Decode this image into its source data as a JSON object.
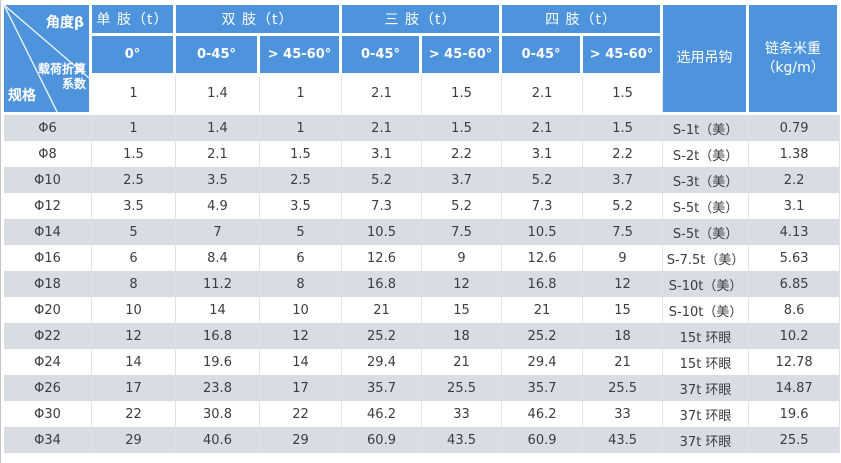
{
  "colors": {
    "header_blue": "#4e94dc",
    "row_alt_gray": "#d8dce3",
    "divider_gray": "#e0e2e6",
    "text_dark": "#3c3c44",
    "header_text": "#ffffff"
  },
  "table": {
    "corner": {
      "top_label": "角度β",
      "mid_line1": "载荷折算",
      "mid_line2": "系数",
      "bottom_label": "规格"
    },
    "group_headers": [
      {
        "label": "单 肢（t）",
        "span": 1
      },
      {
        "label": "双 肢（t）",
        "span": 2
      },
      {
        "label": "三 肢（t）",
        "span": 2
      },
      {
        "label": "四 肢（t）",
        "span": 2
      }
    ],
    "angle_headers": [
      "0°",
      "0-45°",
      "> 45-60°",
      "0-45°",
      "> 45-60°",
      "0-45°",
      "> 45-60°"
    ],
    "side_headers": {
      "hook": "选用吊钩",
      "weight_line1": "链条米重",
      "weight_line2": "（kg/m）"
    },
    "coefficient_row": [
      "1",
      "1.4",
      "1",
      "2.1",
      "1.5",
      "2.1",
      "1.5"
    ],
    "rows": [
      {
        "spec": "Φ6",
        "values": [
          "1",
          "1.4",
          "1",
          "2.1",
          "1.5",
          "2.1",
          "1.5"
        ],
        "hook": "S-1t（美）",
        "weight": "0.79"
      },
      {
        "spec": "Φ8",
        "values": [
          "1.5",
          "2.1",
          "1.5",
          "3.1",
          "2.2",
          "3.1",
          "2.2"
        ],
        "hook": "S-2t（美）",
        "weight": "1.38"
      },
      {
        "spec": "Φ10",
        "values": [
          "2.5",
          "3.5",
          "2.5",
          "5.2",
          "3.7",
          "5.2",
          "3.7"
        ],
        "hook": "S-3t（美）",
        "weight": "2.2"
      },
      {
        "spec": "Φ12",
        "values": [
          "3.5",
          "4.9",
          "3.5",
          "7.3",
          "5.2",
          "7.3",
          "5.2"
        ],
        "hook": "S-5t（美）",
        "weight": "3.1"
      },
      {
        "spec": "Φ14",
        "values": [
          "5",
          "7",
          "5",
          "10.5",
          "7.5",
          "10.5",
          "7.5"
        ],
        "hook": "S-5t（美）",
        "weight": "4.13"
      },
      {
        "spec": "Φ16",
        "values": [
          "6",
          "8.4",
          "6",
          "12.6",
          "9",
          "12.6",
          "9"
        ],
        "hook": "S-7.5t（美）",
        "weight": "5.63"
      },
      {
        "spec": "Φ18",
        "values": [
          "8",
          "11.2",
          "8",
          "16.8",
          "12",
          "16.8",
          "12"
        ],
        "hook": "S-10t（美）",
        "weight": "6.85"
      },
      {
        "spec": "Φ20",
        "values": [
          "10",
          "14",
          "10",
          "21",
          "15",
          "21",
          "15"
        ],
        "hook": "S-10t（美）",
        "weight": "8.6"
      },
      {
        "spec": "Φ22",
        "values": [
          "12",
          "16.8",
          "12",
          "25.2",
          "18",
          "25.2",
          "18"
        ],
        "hook": "15t 环眼",
        "weight": "10.2"
      },
      {
        "spec": "Φ24",
        "values": [
          "14",
          "19.6",
          "14",
          "29.4",
          "21",
          "29.4",
          "21"
        ],
        "hook": "15t 环眼",
        "weight": "12.78"
      },
      {
        "spec": "Φ26",
        "values": [
          "17",
          "23.8",
          "17",
          "35.7",
          "25.5",
          "35.7",
          "25.5"
        ],
        "hook": "37t 环眼",
        "weight": "14.87"
      },
      {
        "spec": "Φ30",
        "values": [
          "22",
          "30.8",
          "22",
          "46.2",
          "33",
          "46.2",
          "33"
        ],
        "hook": "37t 环眼",
        "weight": "19.6"
      },
      {
        "spec": "Φ34",
        "values": [
          "29",
          "40.6",
          "29",
          "60.9",
          "43.5",
          "60.9",
          "43.5"
        ],
        "hook": "37t 环眼",
        "weight": "25.5"
      }
    ]
  }
}
